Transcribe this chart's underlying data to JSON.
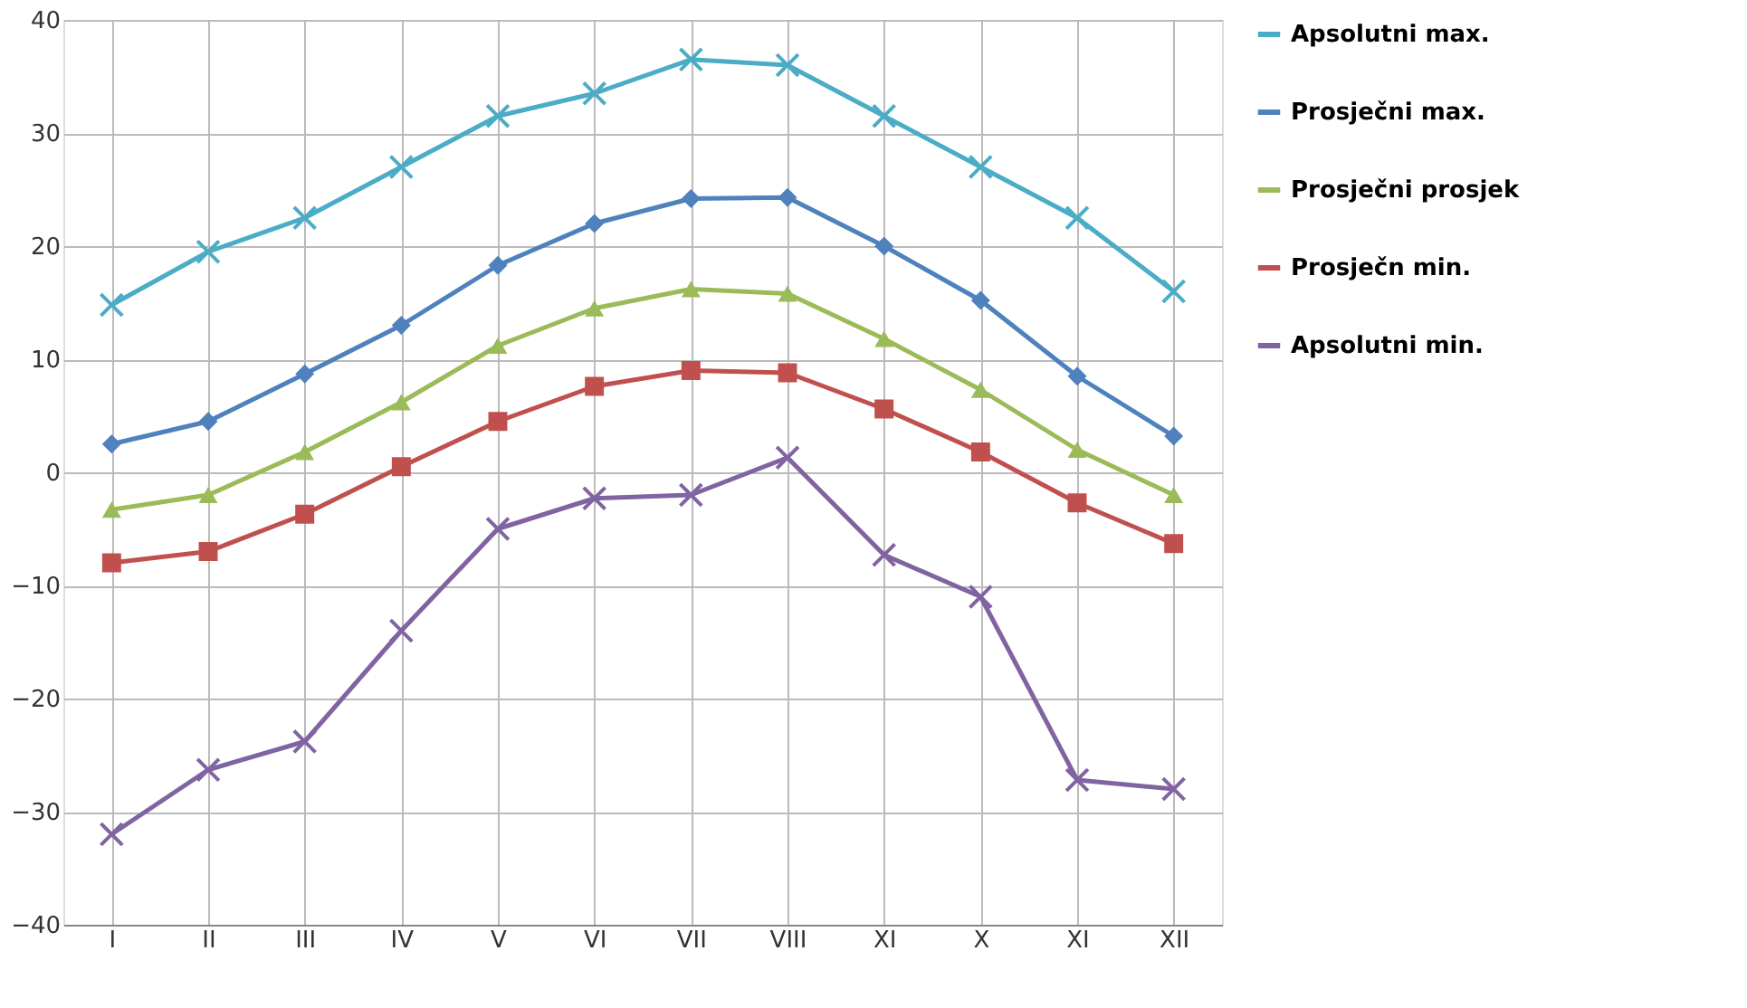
{
  "chart_data": {
    "type": "line",
    "categories": [
      "I",
      "II",
      "III",
      "IV",
      "V",
      "VI",
      "VII",
      "VIII",
      "XI",
      "X",
      "XI",
      "XII"
    ],
    "series": [
      {
        "name": "Apsolutni max.",
        "color": "#4bacc6",
        "marker": "cross",
        "values": [
          14.8,
          19.5,
          22.5,
          27,
          31.5,
          33.5,
          36.5,
          36,
          31.5,
          27,
          22.5,
          16
        ]
      },
      {
        "name": "Prosječni max.",
        "color": "#4f81bd",
        "marker": "diamond",
        "values": [
          2.5,
          4.5,
          8.7,
          13,
          18.3,
          22,
          24.2,
          24.3,
          20,
          15.2,
          8.5,
          3.2
        ]
      },
      {
        "name": "Prosječni prosjek",
        "color": "#9bbb59",
        "marker": "triangle",
        "values": [
          -3.3,
          -2,
          1.8,
          6.2,
          11.2,
          14.5,
          16.2,
          15.8,
          11.8,
          7.3,
          2,
          -2
        ]
      },
      {
        "name": "Prosječn min.",
        "color": "#c0504d",
        "marker": "square",
        "values": [
          -8,
          -7,
          -3.7,
          0.5,
          4.5,
          7.6,
          9,
          8.8,
          5.6,
          1.8,
          -2.7,
          -6.3
        ]
      },
      {
        "name": "Apsolutni min.",
        "color": "#8064a2",
        "marker": "cross",
        "values": [
          -32,
          -26.3,
          -23.8,
          -14,
          -5,
          -2.3,
          -2,
          1.3,
          -7.3,
          -11,
          -27.2,
          -28
        ]
      }
    ],
    "ylim": [
      -40,
      40
    ],
    "yticks": [
      -40,
      -30,
      -20,
      -10,
      0,
      10,
      20,
      30,
      40
    ],
    "grid": true,
    "legend": "right",
    "line_style": "solid"
  }
}
